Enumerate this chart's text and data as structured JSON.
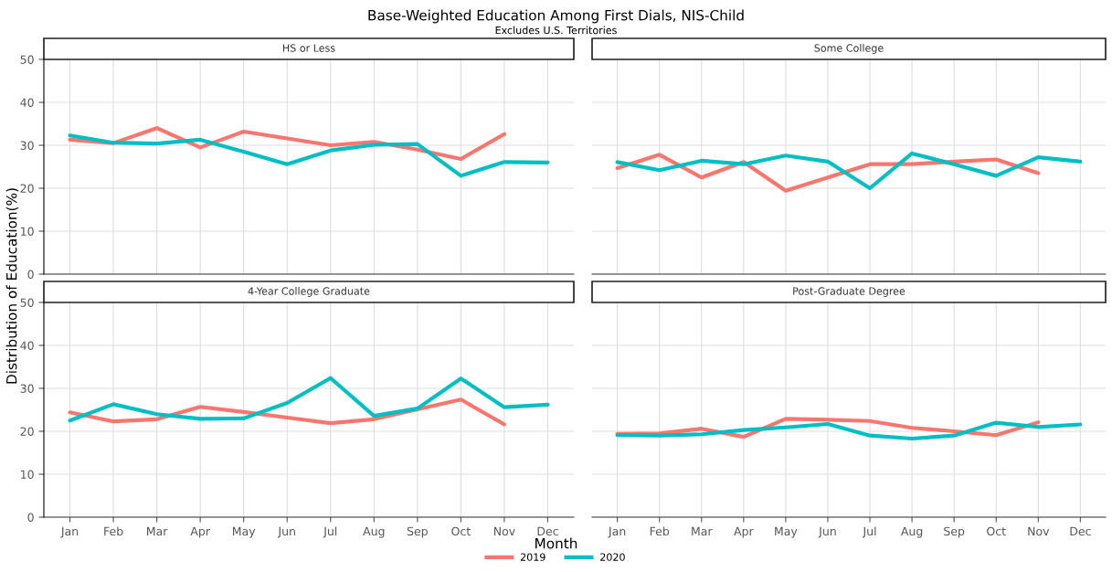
{
  "chart_data": [
    {
      "type": "line",
      "title": "HS or Less",
      "ylabel": "Distribution of Education(%)",
      "annotations": [
        "Base-Weighted Education Among First Dials, NIS-Child",
        "Excludes U.S. Territories"
      ],
      "categories": [
        "Jan",
        "Feb",
        "Mar",
        "Apr",
        "May",
        "Jun",
        "Jul",
        "Aug",
        "Sep",
        "Oct",
        "Nov",
        "Dec"
      ],
      "ylim": [
        0,
        50
      ],
      "yticks": [
        0,
        10,
        20,
        30,
        40,
        50
      ],
      "grid": true,
      "tick_labels": "y",
      "legend": "bottom",
      "series": [
        {
          "name": "2019",
          "color": "#f8766d",
          "values": [
            31.3,
            30.5,
            34.0,
            29.5,
            33.2,
            31.6,
            30.0,
            30.8,
            29.0,
            26.8,
            32.6,
            null
          ]
        },
        {
          "name": "2020",
          "color": "#00bfc4",
          "values": [
            32.3,
            30.6,
            30.4,
            31.3,
            28.5,
            25.6,
            28.8,
            30.1,
            30.3,
            22.9,
            26.1,
            26.0
          ]
        }
      ]
    },
    {
      "type": "line",
      "title": "Some College",
      "categories": [
        "Jan",
        "Feb",
        "Mar",
        "Apr",
        "May",
        "Jun",
        "Jul",
        "Aug",
        "Sep",
        "Oct",
        "Nov",
        "Dec"
      ],
      "ylim": [
        0,
        50
      ],
      "yticks": [
        0,
        10,
        20,
        30,
        40,
        50
      ],
      "grid": true,
      "tick_labels": false,
      "series": [
        {
          "name": "2019",
          "color": "#f8766d",
          "values": [
            24.7,
            27.8,
            22.5,
            26.1,
            19.4,
            22.5,
            25.6,
            25.6,
            26.2,
            26.7,
            23.5,
            null
          ]
        },
        {
          "name": "2020",
          "color": "#00bfc4",
          "values": [
            26.1,
            24.2,
            26.4,
            25.6,
            27.6,
            26.2,
            20.0,
            28.1,
            25.6,
            22.9,
            27.2,
            26.2
          ]
        }
      ]
    },
    {
      "type": "line",
      "title": "4-Year College Graduate",
      "xlabel": "Month",
      "categories": [
        "Jan",
        "Feb",
        "Mar",
        "Apr",
        "May",
        "Jun",
        "Jul",
        "Aug",
        "Sep",
        "Oct",
        "Nov",
        "Dec"
      ],
      "ylim": [
        0,
        50
      ],
      "yticks": [
        0,
        10,
        20,
        30,
        40,
        50
      ],
      "grid": true,
      "series": [
        {
          "name": "2019",
          "color": "#f8766d",
          "values": [
            24.4,
            22.3,
            22.8,
            25.7,
            24.5,
            23.2,
            21.9,
            22.8,
            25.1,
            27.4,
            21.6,
            null
          ]
        },
        {
          "name": "2020",
          "color": "#00bfc4",
          "values": [
            22.5,
            26.3,
            24.0,
            22.9,
            23.0,
            26.6,
            32.4,
            23.6,
            25.3,
            32.3,
            25.6,
            26.2
          ]
        }
      ]
    },
    {
      "type": "line",
      "title": "Post-Graduate Degree",
      "categories": [
        "Jan",
        "Feb",
        "Mar",
        "Apr",
        "May",
        "Jun",
        "Jul",
        "Aug",
        "Sep",
        "Oct",
        "Nov",
        "Dec"
      ],
      "ylim": [
        0,
        50
      ],
      "yticks": [
        0,
        10,
        20,
        30,
        40,
        50
      ],
      "grid": true,
      "tick_labels": "x",
      "series": [
        {
          "name": "2019",
          "color": "#f8766d",
          "values": [
            19.4,
            19.5,
            20.6,
            18.7,
            22.9,
            22.7,
            22.4,
            20.8,
            20.0,
            19.1,
            22.1,
            null
          ]
        },
        {
          "name": "2020",
          "color": "#00bfc4",
          "values": [
            19.1,
            19.0,
            19.3,
            20.3,
            20.9,
            21.7,
            19.0,
            18.3,
            19.0,
            22.0,
            21.0,
            21.6
          ]
        }
      ]
    }
  ]
}
